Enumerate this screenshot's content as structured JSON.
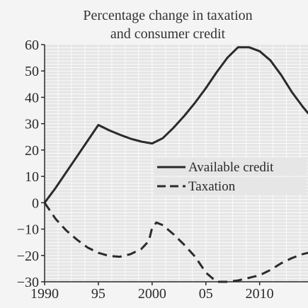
{
  "chart_data": {
    "type": "line",
    "title": "Percentage change in taxation",
    "subtitle": "and consumer credit",
    "xlabel": "",
    "ylabel": "",
    "x_ticks": [
      "1990",
      "95",
      "2000",
      "05",
      "2010"
    ],
    "x_tick_values": [
      1990,
      1995,
      2000,
      2005,
      2010
    ],
    "y_ticks": [
      "60",
      "50",
      "40",
      "30",
      "20",
      "10",
      "0",
      "−10",
      "−20",
      "−30"
    ],
    "y_tick_values": [
      60,
      50,
      40,
      30,
      20,
      10,
      0,
      -10,
      -20,
      -30
    ],
    "xlim": [
      1990,
      2014.5
    ],
    "ylim": [
      -30,
      60
    ],
    "grid": true,
    "legend_position": "center-right",
    "series": [
      {
        "name": "Available credit",
        "style": "solid",
        "color": "#2b2b2b",
        "x": [
          1990,
          1991,
          1992,
          1993,
          1994,
          1995,
          1996,
          1997,
          1998,
          1999,
          2000,
          2001,
          2002,
          2003,
          2004,
          2005,
          2006,
          2007,
          2008,
          2009,
          2010,
          2011,
          2012,
          2013,
          2014,
          2014.5
        ],
        "y": [
          0,
          5.5,
          11.5,
          17.5,
          23.5,
          29.5,
          27.5,
          25.8,
          24.3,
          23.2,
          22.5,
          24.5,
          28.5,
          33,
          38,
          43.5,
          49.5,
          55,
          59,
          59,
          57.5,
          54,
          48.5,
          42,
          36.5,
          34
        ]
      },
      {
        "name": "Taxation",
        "style": "dashed",
        "color": "#2b2b2b",
        "x": [
          1990,
          1991,
          1992,
          1993,
          1994,
          1995,
          1996,
          1997,
          1998,
          1999,
          1999.7,
          2000,
          2000.4,
          2001,
          2002,
          2003,
          2004,
          2005,
          2006,
          2007,
          2008,
          2009,
          2010,
          2011,
          2012,
          2013,
          2014,
          2014.5
        ],
        "y": [
          0,
          -6,
          -10.5,
          -14,
          -17,
          -19,
          -20.2,
          -20.5,
          -19.5,
          -17.5,
          -14.5,
          -9.5,
          -7.5,
          -8.5,
          -12,
          -16,
          -20.5,
          -26.5,
          -30,
          -30,
          -29.5,
          -28.5,
          -27.5,
          -25.5,
          -23,
          -21,
          -19.5,
          -19
        ]
      }
    ]
  },
  "colors": {
    "background": "#f4f4f4",
    "plot_background": "#e6e6e6",
    "grid": "#ffffff",
    "axis": "#2a2a2a",
    "line": "#2b2b2b"
  }
}
